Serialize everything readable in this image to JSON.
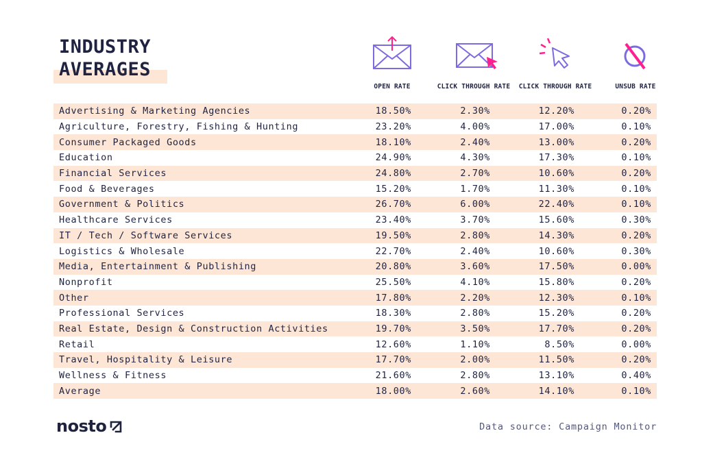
{
  "title": {
    "line1": "INDUSTRY",
    "line2": "AVERAGES"
  },
  "columns": [
    {
      "label": "OPEN RATE",
      "icon": "envelope-upload-icon"
    },
    {
      "label": "CLICK THROUGH RATE",
      "icon": "envelope-cursor-icon"
    },
    {
      "label": "CLICK THROUGH RATE",
      "icon": "cursor-click-icon"
    },
    {
      "label": "UNSUB RATE",
      "icon": "unsubscribe-prohibited-icon"
    }
  ],
  "colors": {
    "navy": "#1f2340",
    "accent": "#ff1f8e",
    "purple": "#7b6ae0",
    "shade": "#fde6d6"
  },
  "chart_data": {
    "type": "table",
    "title": "INDUSTRY AVERAGES",
    "columns": [
      "OPEN RATE",
      "CLICK THROUGH RATE",
      "CLICK THROUGH RATE",
      "UNSUB RATE"
    ],
    "rows": [
      {
        "industry": "Advertising & Marketing Agencies",
        "values": [
          "18.50%",
          "2.30%",
          "12.20%",
          "0.20%"
        ]
      },
      {
        "industry": "Agriculture, Forestry, Fishing & Hunting",
        "values": [
          "23.20%",
          "4.00%",
          "17.00%",
          "0.10%"
        ]
      },
      {
        "industry": "Consumer Packaged Goods",
        "values": [
          "18.10%",
          "2.40%",
          "13.00%",
          "0.20%"
        ]
      },
      {
        "industry": "Education",
        "values": [
          "24.90%",
          "4.30%",
          "17.30%",
          "0.10%"
        ]
      },
      {
        "industry": "Financial Services",
        "values": [
          "24.80%",
          "2.70%",
          "10.60%",
          "0.20%"
        ]
      },
      {
        "industry": "Food & Beverages",
        "values": [
          "15.20%",
          "1.70%",
          "11.30%",
          "0.10%"
        ]
      },
      {
        "industry": "Government & Politics",
        "values": [
          "26.70%",
          "6.00%",
          "22.40%",
          "0.10%"
        ]
      },
      {
        "industry": "Healthcare Services",
        "values": [
          "23.40%",
          "3.70%",
          "15.60%",
          "0.30%"
        ]
      },
      {
        "industry": "IT / Tech / Software Services",
        "values": [
          "19.50%",
          "2.80%",
          "14.30%",
          "0.20%"
        ]
      },
      {
        "industry": "Logistics & Wholesale",
        "values": [
          "22.70%",
          "2.40%",
          "10.60%",
          "0.30%"
        ]
      },
      {
        "industry": "Media, Entertainment & Publishing",
        "values": [
          "20.80%",
          "3.60%",
          "17.50%",
          "0.00%"
        ]
      },
      {
        "industry": "Nonprofit",
        "values": [
          "25.50%",
          "4.10%",
          "15.80%",
          "0.20%"
        ]
      },
      {
        "industry": "Other",
        "values": [
          "17.80%",
          "2.20%",
          "12.30%",
          "0.10%"
        ]
      },
      {
        "industry": "Professional Services",
        "values": [
          "18.30%",
          "2.80%",
          "15.20%",
          "0.20%"
        ]
      },
      {
        "industry": "Real Estate, Design & Construction Activities",
        "values": [
          "19.70%",
          "3.50%",
          "17.70%",
          "0.20%"
        ]
      },
      {
        "industry": "Retail",
        "values": [
          "12.60%",
          "1.10%",
          "8.50%",
          "0.00%"
        ]
      },
      {
        "industry": "Travel, Hospitality & Leisure",
        "values": [
          "17.70%",
          "2.00%",
          "11.50%",
          "0.20%"
        ]
      },
      {
        "industry": "Wellness & Fitness",
        "values": [
          "21.60%",
          "2.80%",
          "13.10%",
          "0.40%"
        ]
      },
      {
        "industry": "Average",
        "values": [
          "18.00%",
          "2.60%",
          "14.10%",
          "0.10%"
        ]
      }
    ]
  },
  "footer": {
    "logo": "nosto",
    "source": "Data source: Campaign Monitor"
  }
}
